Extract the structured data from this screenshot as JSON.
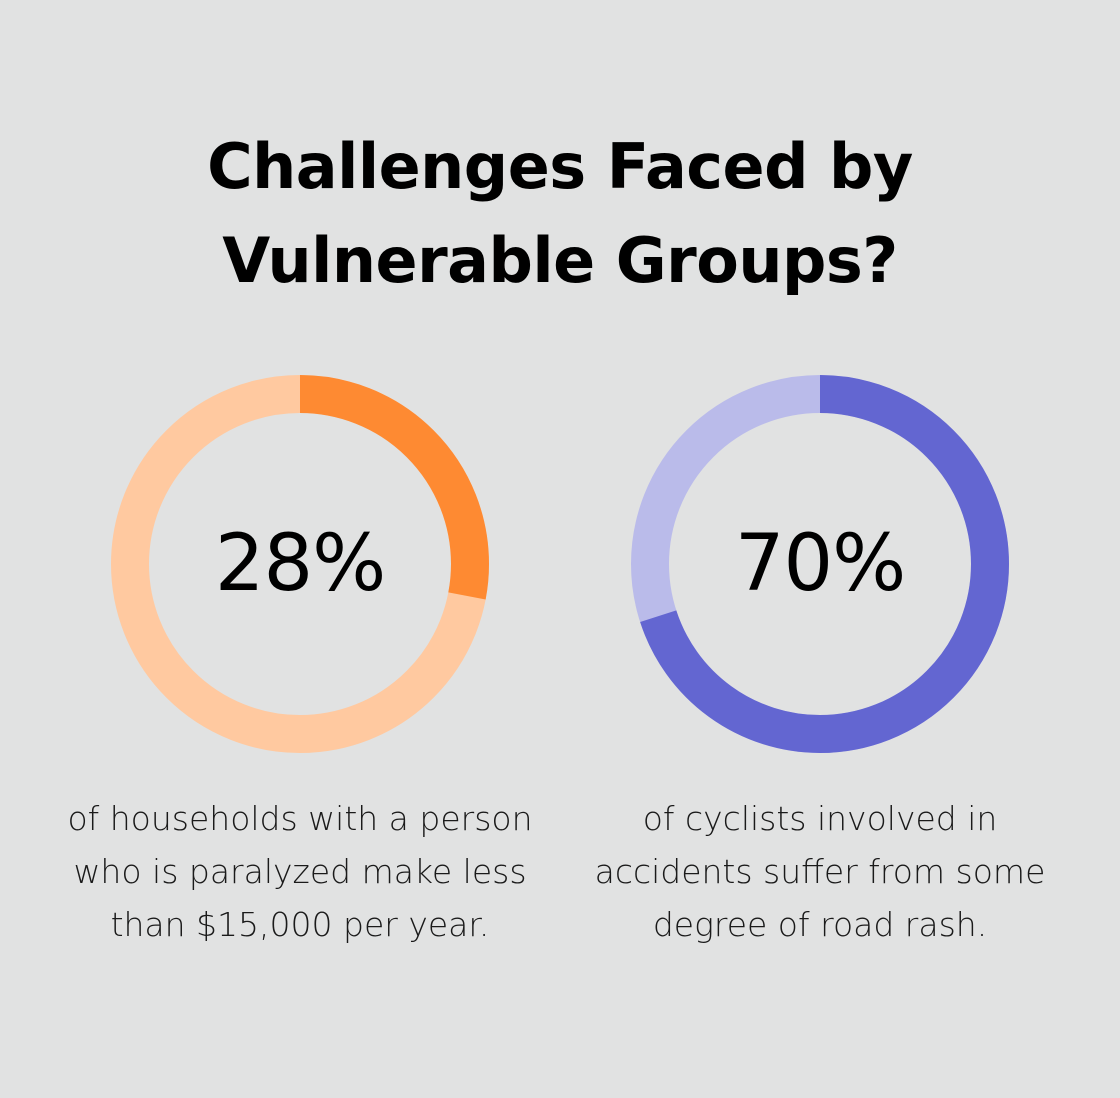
{
  "title": "Challenges Faced by Vulnerable Groups?",
  "chart_data": [
    {
      "type": "pie",
      "value_label": "28%",
      "value": 28,
      "total": 100,
      "description": "of households with a person who is paralyzed make less than $15,000 per year.",
      "colors": {
        "value": "#fe8a32",
        "rest": "#ffc9a0"
      }
    },
    {
      "type": "pie",
      "value_label": "70%",
      "value": 70,
      "total": 100,
      "description": "of cyclists involved in accidents suffer from some degree of road rash.",
      "colors": {
        "value": "#6366d1",
        "rest": "#babbea"
      }
    }
  ]
}
